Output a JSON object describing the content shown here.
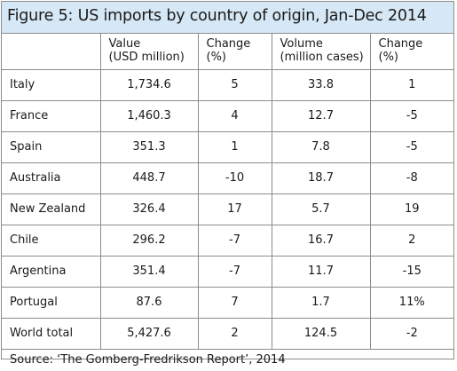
{
  "title": "Figure 5: US imports by country of origin, Jan-Dec 2014",
  "columns": {
    "value": [
      "Value",
      "(USD million)"
    ],
    "change1": [
      "Change",
      "(%)"
    ],
    "volume": [
      "Volume",
      "(million cases)"
    ],
    "change2": [
      "Change",
      "(%)"
    ]
  },
  "rows": [
    {
      "country": "Italy",
      "value": "1,734.6",
      "change1": "5",
      "volume": "33.8",
      "change2": "1"
    },
    {
      "country": "France",
      "value": "1,460.3",
      "change1": "4",
      "volume": "12.7",
      "change2": "-5"
    },
    {
      "country": "Spain",
      "value": "351.3",
      "change1": "1",
      "volume": "7.8",
      "change2": "-5"
    },
    {
      "country": "Australia",
      "value": "448.7",
      "change1": "-10",
      "volume": "18.7",
      "change2": "-8"
    },
    {
      "country": "New Zealand",
      "value": "326.4",
      "change1": "17",
      "volume": "5.7",
      "change2": "19"
    },
    {
      "country": "Chile",
      "value": "296.2",
      "change1": "-7",
      "volume": "16.7",
      "change2": "2"
    },
    {
      "country": "Argentina",
      "value": "351.4",
      "change1": "-7",
      "volume": "11.7",
      "change2": "-15"
    },
    {
      "country": "Portugal",
      "value": "87.6",
      "change1": "7",
      "volume": "1.7",
      "change2": "11%"
    },
    {
      "country": "World total",
      "value": "5,427.6",
      "change1": "2",
      "volume": "124.5",
      "change2": "-2"
    }
  ],
  "source": "Source: ‘The Gomberg-Fredrikson Report’, 2014",
  "colors": {
    "title_background": "#d6e8f6",
    "border": "#8c8c8c"
  }
}
